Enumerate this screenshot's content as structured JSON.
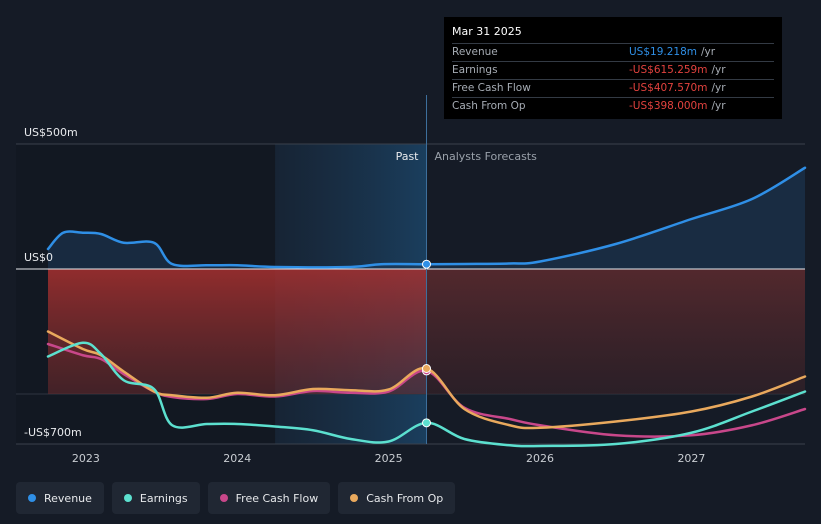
{
  "chart_data": {
    "type": "line",
    "title": "",
    "y_label_top": "US$500m",
    "y_label_zero": "US$0",
    "y_label_bottom": "-US$700m",
    "ylim": [
      -700,
      500
    ],
    "xlim": [
      2022.75,
      2027.75
    ],
    "x_ticks": [
      {
        "value": 2023,
        "label": "2023"
      },
      {
        "value": 2024,
        "label": "2024"
      },
      {
        "value": 2025,
        "label": "2025"
      },
      {
        "value": 2026,
        "label": "2026"
      },
      {
        "value": 2027,
        "label": "2027"
      }
    ],
    "past_label": "Past",
    "forecast_label": "Analysts Forecasts",
    "divider_x": 2025.25,
    "past_shade_start": 2024.25,
    "series": [
      {
        "name": "Revenue",
        "color": "#2f8fe6",
        "points": [
          [
            2022.75,
            80
          ],
          [
            2022.85,
            145
          ],
          [
            2022.98,
            145
          ],
          [
            2023.1,
            140
          ],
          [
            2023.25,
            105
          ],
          [
            2023.45,
            105
          ],
          [
            2023.57,
            20
          ],
          [
            2023.8,
            15
          ],
          [
            2024.0,
            15
          ],
          [
            2024.25,
            8
          ],
          [
            2024.75,
            8
          ],
          [
            2024.95,
            19.218
          ],
          [
            2025.25,
            19.218
          ],
          [
            2025.5,
            20
          ],
          [
            2025.8,
            22
          ],
          [
            2026.0,
            30
          ],
          [
            2026.5,
            100
          ],
          [
            2027.0,
            200
          ],
          [
            2027.4,
            280
          ],
          [
            2027.75,
            405
          ]
        ]
      },
      {
        "name": "Earnings",
        "color": "#5ce0cf",
        "points": [
          [
            2022.75,
            -350
          ],
          [
            2022.98,
            -295
          ],
          [
            2023.1,
            -340
          ],
          [
            2023.25,
            -445
          ],
          [
            2023.45,
            -480
          ],
          [
            2023.57,
            -625
          ],
          [
            2023.8,
            -620
          ],
          [
            2024.0,
            -620
          ],
          [
            2024.25,
            -630
          ],
          [
            2024.5,
            -645
          ],
          [
            2024.75,
            -680
          ],
          [
            2025.0,
            -690
          ],
          [
            2025.25,
            -615.259
          ],
          [
            2025.5,
            -680
          ],
          [
            2025.8,
            -705
          ],
          [
            2026.0,
            -708
          ],
          [
            2026.5,
            -700
          ],
          [
            2027.0,
            -655
          ],
          [
            2027.4,
            -570
          ],
          [
            2027.75,
            -490
          ]
        ]
      },
      {
        "name": "Free Cash Flow",
        "color": "#c8478a",
        "points": [
          [
            2022.75,
            -300
          ],
          [
            2022.98,
            -345
          ],
          [
            2023.1,
            -360
          ],
          [
            2023.25,
            -420
          ],
          [
            2023.45,
            -490
          ],
          [
            2023.57,
            -512
          ],
          [
            2023.8,
            -520
          ],
          [
            2024.0,
            -500
          ],
          [
            2024.25,
            -510
          ],
          [
            2024.5,
            -488
          ],
          [
            2024.75,
            -495
          ],
          [
            2025.0,
            -490
          ],
          [
            2025.25,
            -407.57
          ],
          [
            2025.5,
            -555
          ],
          [
            2025.8,
            -600
          ],
          [
            2026.0,
            -625
          ],
          [
            2026.5,
            -665
          ],
          [
            2027.0,
            -665
          ],
          [
            2027.4,
            -625
          ],
          [
            2027.75,
            -560
          ]
        ]
      },
      {
        "name": "Cash From Op",
        "color": "#e9a95d",
        "points": [
          [
            2022.75,
            -250
          ],
          [
            2022.98,
            -320
          ],
          [
            2023.1,
            -345
          ],
          [
            2023.25,
            -410
          ],
          [
            2023.45,
            -490
          ],
          [
            2023.57,
            -505
          ],
          [
            2023.8,
            -515
          ],
          [
            2024.0,
            -495
          ],
          [
            2024.25,
            -505
          ],
          [
            2024.5,
            -480
          ],
          [
            2024.75,
            -485
          ],
          [
            2025.0,
            -482
          ],
          [
            2025.25,
            -398.0
          ],
          [
            2025.5,
            -560
          ],
          [
            2025.8,
            -625
          ],
          [
            2026.0,
            -635
          ],
          [
            2026.5,
            -610
          ],
          [
            2027.0,
            -570
          ],
          [
            2027.4,
            -510
          ],
          [
            2027.75,
            -430
          ]
        ]
      }
    ]
  },
  "tooltip": {
    "date": "Mar 31 2025",
    "rows": [
      {
        "label": "Revenue",
        "value": "US$19.218m",
        "unit": "/yr",
        "color": "#2f8fe6"
      },
      {
        "label": "Earnings",
        "value": "-US$615.259m",
        "unit": "/yr",
        "color": "#e2423e"
      },
      {
        "label": "Free Cash Flow",
        "value": "-US$407.570m",
        "unit": "/yr",
        "color": "#e2423e"
      },
      {
        "label": "Cash From Op",
        "value": "-US$398.000m",
        "unit": "/yr",
        "color": "#e2423e"
      }
    ]
  },
  "legend": [
    {
      "label": "Revenue",
      "color": "#2f8fe6"
    },
    {
      "label": "Earnings",
      "color": "#5ce0cf"
    },
    {
      "label": "Free Cash Flow",
      "color": "#c8478a"
    },
    {
      "label": "Cash From Op",
      "color": "#e9a95d"
    }
  ]
}
